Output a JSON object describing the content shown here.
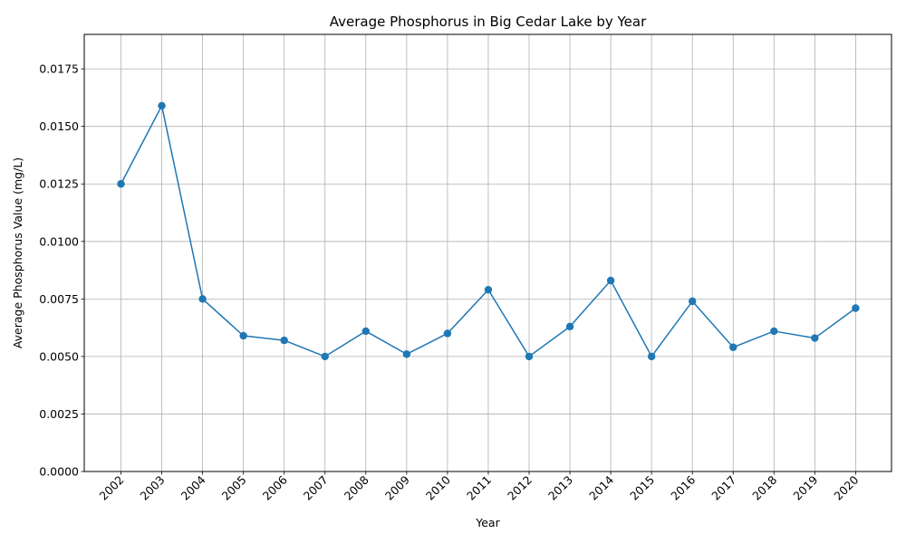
{
  "chart_data": {
    "type": "line",
    "title": "Average Phosphorus in Big Cedar Lake by Year",
    "xlabel": "Year",
    "ylabel": "Average Phosphorus Value (mg/L)",
    "categories": [
      "2002",
      "2003",
      "2004",
      "2005",
      "2006",
      "2007",
      "2008",
      "2009",
      "2010",
      "2011",
      "2012",
      "2013",
      "2014",
      "2015",
      "2016",
      "2017",
      "2018",
      "2019",
      "2020"
    ],
    "series": [
      {
        "values": [
          0.0125,
          0.0159,
          0.0075,
          0.0059,
          0.0057,
          0.005,
          0.0061,
          0.0051,
          0.006,
          0.0079,
          0.005,
          0.0063,
          0.0083,
          0.005,
          0.0074,
          0.0054,
          0.0061,
          0.0058,
          0.0071
        ]
      }
    ],
    "ylim": [
      0,
      0.019
    ],
    "yticks": [
      "0.0000",
      "0.0025",
      "0.0050",
      "0.0075",
      "0.0100",
      "0.0125",
      "0.0150",
      "0.0175"
    ],
    "grid": true,
    "marker": "circle",
    "colors": {
      "line": "#1f77b4",
      "grid": "#b0b0b0",
      "axis": "#000000"
    }
  }
}
